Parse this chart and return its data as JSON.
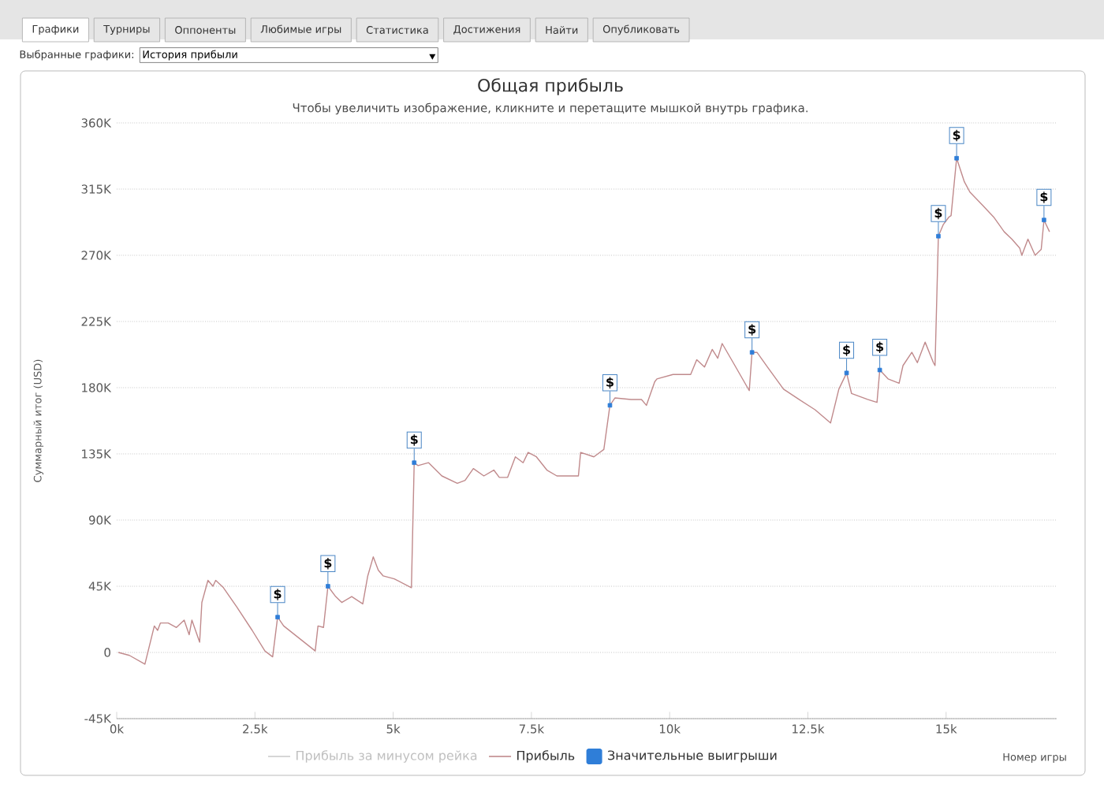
{
  "chart_data": {
    "type": "line",
    "title": "Общая прибыль",
    "subtitle": "Чтобы увеличить изображение, кликните и перетащите мышкой внутрь графика.",
    "xlabel": "Номер игры",
    "ylabel": "Суммарный итог (USD)",
    "xlim": [
      0,
      17000
    ],
    "ylim": [
      -45000,
      360000
    ],
    "xticks": [
      {
        "value": 0,
        "label": "0k"
      },
      {
        "value": 2500,
        "label": "2.5k"
      },
      {
        "value": 5000,
        "label": "5k"
      },
      {
        "value": 7500,
        "label": "7.5k"
      },
      {
        "value": 10000,
        "label": "10k"
      },
      {
        "value": 12500,
        "label": "12.5k"
      },
      {
        "value": 15000,
        "label": "15k"
      }
    ],
    "yticks": [
      {
        "value": -45000,
        "label": "-45K"
      },
      0,
      {
        "value": 45000,
        "label": "45K"
      },
      {
        "value": 90000,
        "label": "90K"
      },
      {
        "value": 135000,
        "label": "135K"
      },
      {
        "value": 180000,
        "label": "180K"
      },
      {
        "value": 225000,
        "label": "225K"
      },
      {
        "value": 270000,
        "label": "270K"
      },
      {
        "value": 315000,
        "label": "315K"
      },
      {
        "value": 360000,
        "label": "360K"
      }
    ],
    "grid": "y",
    "legend": "bottom",
    "series": [
      {
        "name": "Прибыль за минусом рейка",
        "color": "#cccccc"
      },
      {
        "name": "Прибыль",
        "color": "#c08a8c",
        "x": [
          30,
          230,
          510,
          680,
          740,
          790,
          930,
          1080,
          1220,
          1310,
          1360,
          1500,
          1540,
          1650,
          1740,
          1790,
          1930,
          2170,
          2450,
          2680,
          2820,
          2850,
          2910,
          3020,
          3590,
          3640,
          3740,
          3820,
          3960,
          4070,
          4250,
          4450,
          4540,
          4640,
          4730,
          4820,
          5020,
          5330,
          5380,
          5450,
          5640,
          5880,
          6160,
          6300,
          6450,
          6640,
          6820,
          6920,
          7070,
          7210,
          7350,
          7440,
          7590,
          7780,
          7960,
          8350,
          8390,
          8630,
          8810,
          8920,
          9010,
          9300,
          9490,
          9580,
          9730,
          9770,
          10060,
          10380,
          10490,
          10630,
          10770,
          10870,
          10950,
          11150,
          11440,
          11490,
          11580,
          11770,
          12060,
          12340,
          12630,
          12910,
          13060,
          13200,
          13290,
          13580,
          13750,
          13800,
          13950,
          14150,
          14220,
          14380,
          14480,
          14620,
          14770,
          14800,
          14860,
          14950,
          15050,
          15090,
          15190,
          15330,
          15430,
          15660,
          15860,
          16050,
          16190,
          16330,
          16370,
          16480,
          16610,
          16720,
          16770,
          16870
        ],
        "values": [
          0,
          -2000,
          -8000,
          18000,
          15000,
          20000,
          20000,
          17000,
          22000,
          12000,
          22000,
          7000,
          34000,
          49000,
          45000,
          49000,
          44000,
          31000,
          15000,
          1000,
          -3000,
          6000,
          24000,
          18000,
          1000,
          18000,
          17000,
          45000,
          38000,
          34000,
          38000,
          33000,
          52000,
          65000,
          56000,
          52000,
          50000,
          44000,
          129000,
          127000,
          129000,
          120000,
          115000,
          117000,
          125000,
          120000,
          124000,
          119000,
          119000,
          133000,
          129000,
          136000,
          133000,
          124000,
          120000,
          120000,
          136000,
          133000,
          138000,
          168000,
          173000,
          172000,
          172000,
          168000,
          184000,
          186000,
          189000,
          189000,
          199000,
          194000,
          206000,
          200000,
          210000,
          197000,
          178000,
          204000,
          204000,
          194000,
          179000,
          172000,
          165000,
          156000,
          179000,
          190000,
          176000,
          172000,
          170000,
          192000,
          186000,
          183000,
          195000,
          204000,
          197000,
          211000,
          197000,
          195000,
          283000,
          291000,
          296000,
          297000,
          336000,
          320000,
          313000,
          304000,
          296000,
          286000,
          281000,
          275000,
          270000,
          281000,
          270000,
          274000,
          294000,
          286000
        ]
      },
      {
        "name": "Значительные выигрыши",
        "type": "scatter",
        "marker": "square",
        "color": "#2f7ed8",
        "x": [
          2910,
          3820,
          5380,
          8920,
          11490,
          13200,
          13800,
          14860,
          15190,
          16770
        ],
        "values": [
          24000,
          45000,
          129000,
          168000,
          204000,
          190000,
          192000,
          283000,
          336000,
          294000
        ]
      }
    ],
    "annotations": [
      "Графики",
      "Турниры",
      "Оппоненты",
      "Любимые игры",
      "Статистика",
      "Достижения",
      "Найти",
      "Опубликовать",
      "Выбранные графики:",
      "История прибыли",
      {
        "text": "$",
        "x": 2910,
        "y": 24000
      },
      {
        "text": "$",
        "x": 3820,
        "y": 45000
      },
      {
        "text": "$",
        "x": 5380,
        "y": 129000
      },
      {
        "text": "$",
        "x": 8920,
        "y": 168000
      },
      {
        "text": "$",
        "x": 11490,
        "y": 204000
      },
      {
        "text": "$",
        "x": 13200,
        "y": 190000
      },
      {
        "text": "$",
        "x": 13800,
        "y": 192000
      },
      {
        "text": "$",
        "x": 14860,
        "y": 283000
      },
      {
        "text": "$",
        "x": 15190,
        "y": 336000
      },
      {
        "text": "$",
        "x": 16770,
        "y": 294000
      }
    ]
  }
}
